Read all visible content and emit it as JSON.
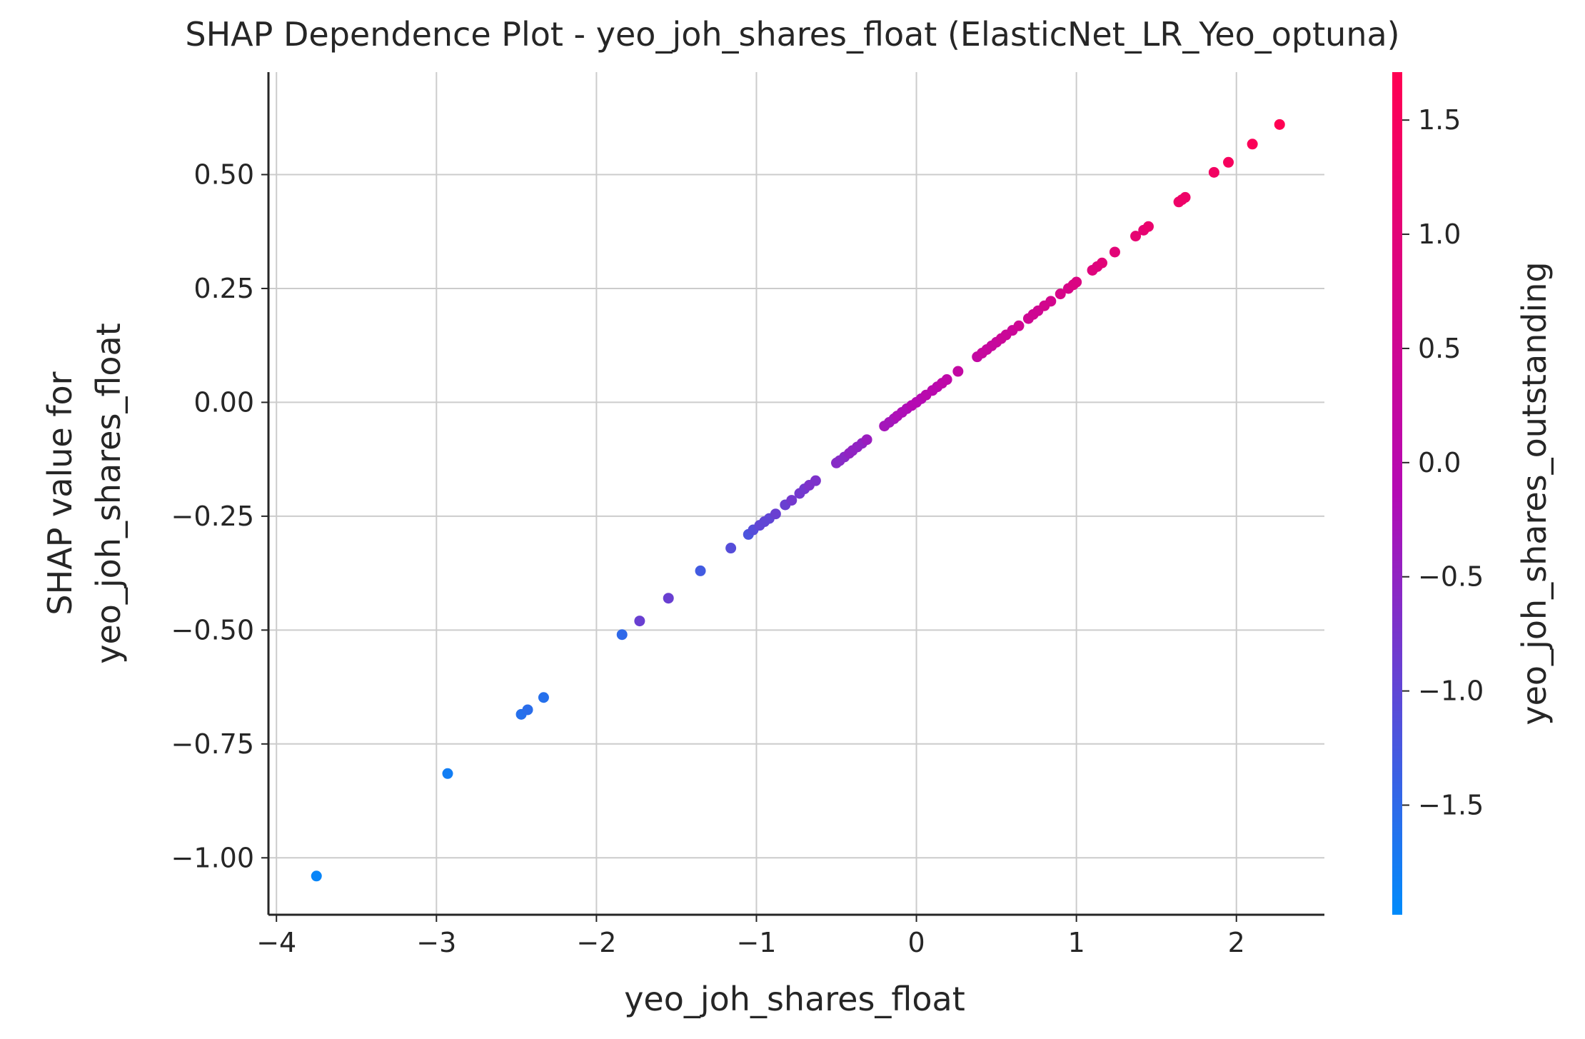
{
  "chart_data": {
    "type": "scatter",
    "title": "SHAP Dependence Plot - yeo_joh_shares_float (ElasticNet_LR_Yeo_optuna)",
    "xlabel": "yeo_joh_shares_float",
    "ylabel_line1": "SHAP value for",
    "ylabel_line2": "yeo_joh_shares_float",
    "colorbar_label": "yeo_joh_shares_outstanding",
    "xlim": [
      -4.05,
      2.55
    ],
    "ylim": [
      -1.125,
      0.725
    ],
    "xticks": [
      -4,
      -3,
      -2,
      -1,
      0,
      1,
      2
    ],
    "xtick_labels": [
      "−4",
      "−3",
      "−2",
      "−1",
      "0",
      "1",
      "2"
    ],
    "yticks": [
      0.5,
      0.25,
      0.0,
      -0.25,
      -0.5,
      -0.75,
      -1.0
    ],
    "ytick_labels": [
      "0.50",
      "0.25",
      "0.00",
      "−0.25",
      "−0.50",
      "−0.75",
      "−1.00"
    ],
    "color_range": [
      -1.98,
      1.71
    ],
    "cticks": [
      1.5,
      1.0,
      0.5,
      0.0,
      -0.5,
      -1.0,
      -1.5
    ],
    "ctick_labels": [
      "1.5",
      "1.0",
      "0.5",
      "0.0",
      "−0.5",
      "−1.0",
      "−1.5"
    ],
    "colors": {
      "low": "#008bfb",
      "mid": "#b40ab4",
      "high": "#ff0052"
    },
    "grid": true,
    "points": [
      {
        "x": -3.75,
        "y": -1.04,
        "c": -1.9
      },
      {
        "x": -2.93,
        "y": -0.815,
        "c": -1.8
      },
      {
        "x": -2.47,
        "y": -0.685,
        "c": -1.6
      },
      {
        "x": -2.43,
        "y": -0.675,
        "c": -1.55
      },
      {
        "x": -2.33,
        "y": -0.648,
        "c": -1.6
      },
      {
        "x": -1.84,
        "y": -0.51,
        "c": -1.5
      },
      {
        "x": -1.73,
        "y": -0.48,
        "c": -0.9
      },
      {
        "x": -1.55,
        "y": -0.43,
        "c": -0.9
      },
      {
        "x": -1.35,
        "y": -0.37,
        "c": -1.3
      },
      {
        "x": -1.16,
        "y": -0.32,
        "c": -1.1
      },
      {
        "x": -1.05,
        "y": -0.29,
        "c": -1.2
      },
      {
        "x": -1.02,
        "y": -0.28,
        "c": -1.1
      },
      {
        "x": -0.98,
        "y": -0.27,
        "c": -1.0
      },
      {
        "x": -0.95,
        "y": -0.262,
        "c": -1.0
      },
      {
        "x": -0.92,
        "y": -0.255,
        "c": -1.0
      },
      {
        "x": -0.88,
        "y": -0.245,
        "c": -0.9
      },
      {
        "x": -0.82,
        "y": -0.225,
        "c": -0.9
      },
      {
        "x": -0.78,
        "y": -0.215,
        "c": -0.8
      },
      {
        "x": -0.73,
        "y": -0.2,
        "c": -0.8
      },
      {
        "x": -0.7,
        "y": -0.19,
        "c": -0.8
      },
      {
        "x": -0.67,
        "y": -0.182,
        "c": -0.7
      },
      {
        "x": -0.63,
        "y": -0.172,
        "c": -0.7
      },
      {
        "x": -0.5,
        "y": -0.133,
        "c": -0.6
      },
      {
        "x": -0.48,
        "y": -0.128,
        "c": -0.6
      },
      {
        "x": -0.45,
        "y": -0.12,
        "c": -0.6
      },
      {
        "x": -0.42,
        "y": -0.112,
        "c": -0.5
      },
      {
        "x": -0.4,
        "y": -0.106,
        "c": -0.5
      },
      {
        "x": -0.37,
        "y": -0.098,
        "c": -0.5
      },
      {
        "x": -0.34,
        "y": -0.09,
        "c": -0.5
      },
      {
        "x": -0.31,
        "y": -0.082,
        "c": -0.4
      },
      {
        "x": -0.2,
        "y": -0.052,
        "c": -0.3
      },
      {
        "x": -0.17,
        "y": -0.044,
        "c": -0.3
      },
      {
        "x": -0.14,
        "y": -0.036,
        "c": -0.3
      },
      {
        "x": -0.12,
        "y": -0.03,
        "c": -0.2
      },
      {
        "x": -0.09,
        "y": -0.022,
        "c": -0.2
      },
      {
        "x": -0.06,
        "y": -0.014,
        "c": -0.2
      },
      {
        "x": -0.03,
        "y": -0.007,
        "c": -0.1
      },
      {
        "x": 0.0,
        "y": 0.0,
        "c": -0.1
      },
      {
        "x": 0.03,
        "y": 0.008,
        "c": -0.1
      },
      {
        "x": 0.06,
        "y": 0.016,
        "c": 0.0
      },
      {
        "x": 0.1,
        "y": 0.026,
        "c": 0.0
      },
      {
        "x": 0.13,
        "y": 0.034,
        "c": 0.0
      },
      {
        "x": 0.16,
        "y": 0.042,
        "c": 0.1
      },
      {
        "x": 0.19,
        "y": 0.05,
        "c": 0.1
      },
      {
        "x": 0.26,
        "y": 0.068,
        "c": 0.2
      },
      {
        "x": 0.38,
        "y": 0.1,
        "c": 0.2
      },
      {
        "x": 0.41,
        "y": 0.108,
        "c": 0.3
      },
      {
        "x": 0.44,
        "y": 0.116,
        "c": 0.3
      },
      {
        "x": 0.47,
        "y": 0.124,
        "c": 0.3
      },
      {
        "x": 0.5,
        "y": 0.132,
        "c": 0.3
      },
      {
        "x": 0.53,
        "y": 0.14,
        "c": 0.4
      },
      {
        "x": 0.56,
        "y": 0.148,
        "c": 0.4
      },
      {
        "x": 0.6,
        "y": 0.158,
        "c": 0.4
      },
      {
        "x": 0.64,
        "y": 0.168,
        "c": 0.5
      },
      {
        "x": 0.7,
        "y": 0.184,
        "c": 0.5
      },
      {
        "x": 0.73,
        "y": 0.193,
        "c": 0.5
      },
      {
        "x": 0.76,
        "y": 0.201,
        "c": 0.5
      },
      {
        "x": 0.8,
        "y": 0.212,
        "c": 0.6
      },
      {
        "x": 0.84,
        "y": 0.222,
        "c": 0.6
      },
      {
        "x": 0.9,
        "y": 0.238,
        "c": 0.7
      },
      {
        "x": 0.95,
        "y": 0.25,
        "c": 0.7
      },
      {
        "x": 0.98,
        "y": 0.258,
        "c": 0.8
      },
      {
        "x": 1.0,
        "y": 0.264,
        "c": 0.8
      },
      {
        "x": 1.1,
        "y": 0.29,
        "c": 0.9
      },
      {
        "x": 1.13,
        "y": 0.298,
        "c": 0.9
      },
      {
        "x": 1.16,
        "y": 0.306,
        "c": 1.0
      },
      {
        "x": 1.24,
        "y": 0.33,
        "c": 1.0
      },
      {
        "x": 1.37,
        "y": 0.365,
        "c": 1.1
      },
      {
        "x": 1.42,
        "y": 0.378,
        "c": 1.1
      },
      {
        "x": 1.45,
        "y": 0.386,
        "c": 1.2
      },
      {
        "x": 1.64,
        "y": 0.44,
        "c": 1.3
      },
      {
        "x": 1.66,
        "y": 0.445,
        "c": 1.3
      },
      {
        "x": 1.68,
        "y": 0.45,
        "c": 1.3
      },
      {
        "x": 1.86,
        "y": 0.505,
        "c": 1.4
      },
      {
        "x": 1.95,
        "y": 0.527,
        "c": 1.5
      },
      {
        "x": 2.1,
        "y": 0.567,
        "c": 1.6
      },
      {
        "x": 2.27,
        "y": 0.61,
        "c": 1.7
      }
    ]
  }
}
